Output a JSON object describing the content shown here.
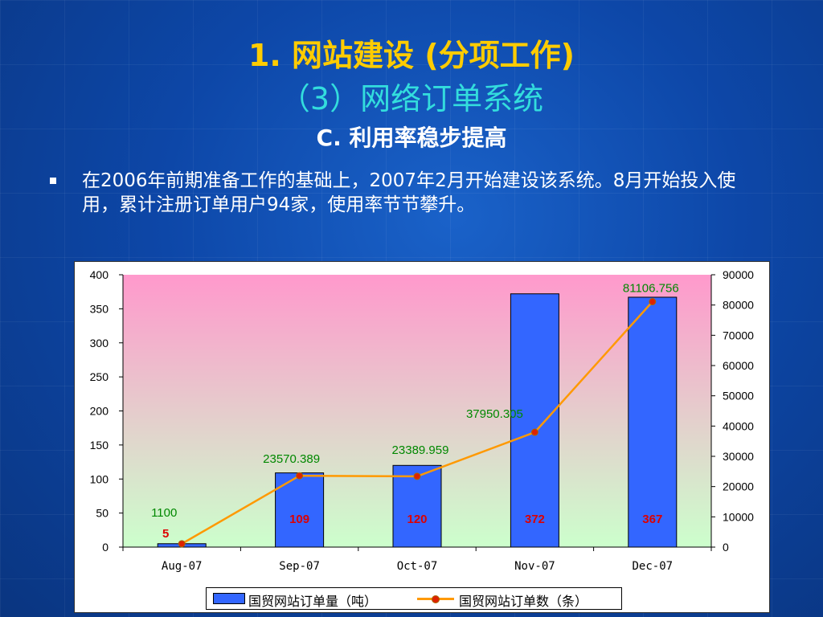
{
  "slide": {
    "title_line1": "1. 网站建设 (分项工作)",
    "title_line2": "（3）网络订单系统",
    "title_line3": "C. 利用率稳步提高",
    "bullet_text": "在2006年前期准备工作的基础上，2007年2月开始建设该系统。8月开始投入使用，累计注册订单用户94家，使用率节节攀升。"
  },
  "chart_data": {
    "type": "bar",
    "categories": [
      "Aug-07",
      "Sep-07",
      "Oct-07",
      "Nov-07",
      "Dec-07"
    ],
    "series": [
      {
        "name": "国贸网站订单量（吨）",
        "type": "bar",
        "axis": "left",
        "values": [
          5,
          109,
          120,
          372,
          367
        ],
        "data_labels": [
          "5",
          "109",
          "120",
          "372",
          "367"
        ],
        "color": "#3366ff"
      },
      {
        "name": "国贸网站订单数（条）",
        "type": "line",
        "axis": "right",
        "values": [
          1100,
          23570.389,
          23389.959,
          37950.305,
          81106.756
        ],
        "data_labels": [
          "1100",
          "23570.389",
          "23389.959",
          "37950.305",
          "81106.756"
        ],
        "color": "#ff9900"
      }
    ],
    "ylim_left": [
      0,
      400
    ],
    "yticks_left": [
      "0",
      "50",
      "100",
      "150",
      "200",
      "250",
      "300",
      "350",
      "400"
    ],
    "ylim_right": [
      0,
      90000
    ],
    "yticks_right": [
      "0",
      "10000",
      "20000",
      "30000",
      "40000",
      "50000",
      "60000",
      "70000",
      "80000",
      "90000"
    ],
    "grid": false,
    "legend_position": "bottom",
    "colors": {
      "bar_label": "#dd0000",
      "line_label": "#008800",
      "marker": "#dd2200"
    }
  }
}
